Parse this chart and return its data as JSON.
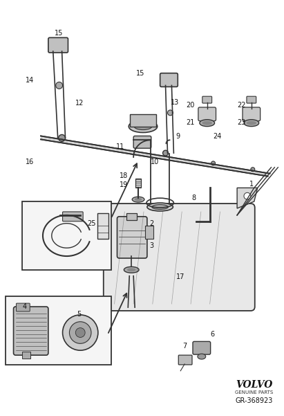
{
  "background_color": "#ffffff",
  "fig_width": 4.11,
  "fig_height": 6.01,
  "dpi": 100,
  "volvo_text": "VOLVO",
  "genuine_parts_text": "GENUINE PARTS",
  "part_number": "GR-368923",
  "line_color": "#333333",
  "label_fontsize": 7.0
}
